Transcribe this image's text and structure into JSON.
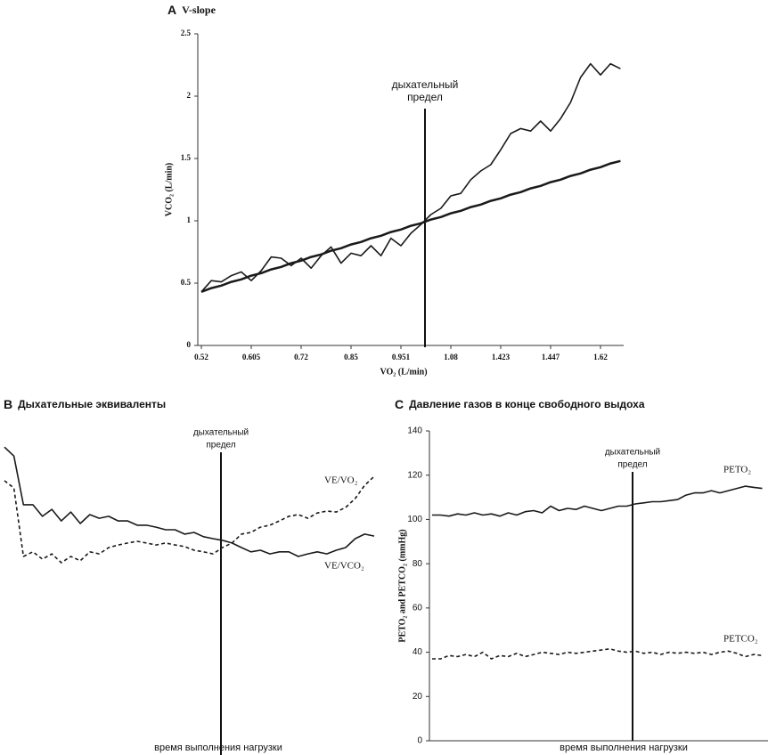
{
  "chart_data": [
    {
      "type": "line",
      "panel": "A",
      "title": "V-slope",
      "categories": [
        "0.52",
        null,
        null,
        null,
        null,
        "0.605",
        null,
        null,
        null,
        null,
        "0.72",
        null,
        null,
        null,
        null,
        "0.85",
        null,
        null,
        null,
        null,
        "0.951",
        null,
        null,
        null,
        null,
        "1.08",
        null,
        null,
        null,
        null,
        "1.423",
        null,
        null,
        null,
        null,
        "1.447",
        null,
        null,
        null,
        null,
        "1.62",
        null,
        null
      ],
      "x_label": "VO₂ (L/min)",
      "y_label": "VCO₂ (L/min)",
      "ylim": [
        0,
        2.5
      ],
      "yticks": [
        0,
        0.5,
        1,
        1.5,
        2,
        2.5
      ],
      "annotation": [
        "дыхательный",
        "предел"
      ],
      "series": [
        {
          "color": "#1a1a1a",
          "line_style": "solid",
          "values": [
            0.43,
            0.52,
            0.51,
            0.56,
            0.59,
            0.52,
            0.6,
            0.71,
            0.7,
            0.64,
            0.7,
            0.62,
            0.72,
            0.79,
            0.66,
            0.74,
            0.72,
            0.8,
            0.72,
            0.86,
            0.8,
            0.9,
            0.97,
            1.05,
            1.1,
            1.2,
            1.22,
            1.33,
            1.4,
            1.45,
            1.57,
            1.7,
            1.74,
            1.72,
            1.8,
            1.72,
            1.82,
            1.95,
            2.15,
            2.26,
            2.17,
            2.26,
            2.22
          ]
        },
        {
          "color": "#1a1a1a",
          "line_style": "solid",
          "values": [
            0.43,
            0.46,
            0.48,
            0.51,
            0.53,
            0.56,
            0.58,
            0.61,
            0.63,
            0.66,
            0.68,
            0.71,
            0.73,
            0.76,
            0.78,
            0.81,
            0.83,
            0.86,
            0.88,
            0.91,
            0.93,
            0.96,
            0.98,
            1.01,
            1.03,
            1.06,
            1.08,
            1.11,
            1.13,
            1.16,
            1.18,
            1.21,
            1.23,
            1.26,
            1.28,
            1.31,
            1.33,
            1.36,
            1.38,
            1.41,
            1.43,
            1.46,
            1.48
          ]
        }
      ]
    },
    {
      "type": "line",
      "panel": "B",
      "title": "Дыхательные эквиваленты",
      "x_label": "время выполнения нагрузки",
      "ylim": [
        0,
        100
      ],
      "annotation": [
        "дыхательный",
        "предел"
      ],
      "series": [
        {
          "name": "VE/VO₂",
          "color": "#1a1a1a",
          "line_style": "dashed",
          "values": [
            78.4,
            76.2,
            55.4,
            56.8,
            54.6,
            56.2,
            53.5,
            55.4,
            54.1,
            56.8,
            56.2,
            58.1,
            58.9,
            59.5,
            60.0,
            59.5,
            58.9,
            59.5,
            58.9,
            58.4,
            57.3,
            56.8,
            56.2,
            58.1,
            59.5,
            62.2,
            62.7,
            64.3,
            64.9,
            66.2,
            67.6,
            68.1,
            67.0,
            68.6,
            69.2,
            68.9,
            70.3,
            73.0,
            77.0,
            79.7
          ]
        },
        {
          "name": "VE/VCO₂",
          "color": "#1a1a1a",
          "line_style": "solid",
          "values": [
            88.6,
            85.9,
            71.1,
            71.1,
            67.6,
            69.7,
            66.2,
            68.9,
            65.4,
            68.1,
            67.0,
            67.6,
            66.2,
            66.2,
            64.9,
            64.9,
            64.3,
            63.5,
            63.5,
            62.2,
            62.7,
            61.4,
            60.8,
            60.3,
            59.5,
            58.1,
            56.8,
            57.3,
            56.2,
            56.8,
            56.8,
            55.4,
            56.2,
            56.8,
            56.2,
            57.3,
            58.1,
            60.8,
            62.2,
            61.6
          ]
        }
      ]
    },
    {
      "type": "line",
      "panel": "C",
      "title": "Давление газов в конце свободного выдоха",
      "x_label": "время выполнения нагрузки",
      "y_label": "PETO₂ and PETCO₂ (mmHg)",
      "ylim": [
        0,
        140
      ],
      "yticks": [
        0,
        20,
        40,
        60,
        80,
        100,
        120,
        140
      ],
      "annotation": [
        "дыхательный",
        "предел"
      ],
      "series": [
        {
          "name": "PETO₂",
          "color": "#1a1a1a",
          "line_style": "solid",
          "values": [
            102,
            102,
            101.5,
            102.5,
            102,
            103,
            102,
            102.5,
            101.5,
            103,
            102,
            103.5,
            104,
            103,
            106,
            104,
            105,
            104.5,
            106,
            105,
            104,
            105,
            106,
            106,
            107,
            107.5,
            108,
            108,
            108.5,
            109,
            111,
            112,
            112,
            113,
            112,
            113,
            114,
            115,
            114.5,
            114
          ]
        },
        {
          "name": "PETCO₂",
          "color": "#1a1a1a",
          "line_style": "dashed",
          "values": [
            37,
            37,
            38.5,
            38,
            39,
            38,
            40,
            37,
            38.5,
            38,
            39.5,
            38,
            39,
            40,
            39.5,
            39,
            40,
            39.5,
            40,
            40.5,
            41,
            41.5,
            40.5,
            40,
            40.5,
            39.5,
            40,
            39,
            40,
            39.5,
            40,
            39.5,
            40,
            39,
            40,
            40.5,
            39.5,
            38,
            39,
            38.5
          ]
        }
      ]
    }
  ]
}
